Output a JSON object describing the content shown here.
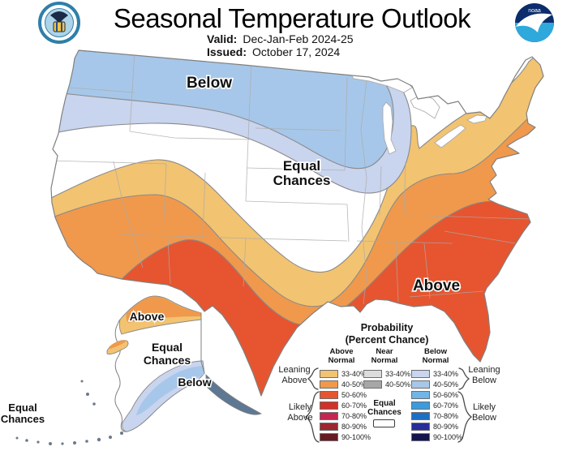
{
  "header": {
    "title": "Seasonal Temperature Outlook",
    "valid_label": "Valid:",
    "valid_value": "Dec-Jan-Feb 2024-25",
    "issued_label": "Issued:",
    "issued_value": "October 17, 2024",
    "noaa_text": "noaa"
  },
  "map": {
    "labels": {
      "below": "Below",
      "equal1": "Equal",
      "equal2": "Chances",
      "above": "Above",
      "ak_above": "Above",
      "ak_equal1": "Equal",
      "ak_equal2": "Chances",
      "ak_below": "Below",
      "aleutian_equal1": "Equal",
      "aleutian_equal2": "Chances"
    },
    "colors": {
      "land": "#FFFFFF",
      "outline": "#808080",
      "state_line": "#ABABAB",
      "band_stroke": "#8A8A8A",
      "above_33_40": "#F2C371",
      "above_40_50": "#F0994C",
      "above_50_60": "#E6552F",
      "below_33_40": "#C9D4EE",
      "below_40_50": "#A6C7E9",
      "ak_panhandle": "#5E7894",
      "island_dot": "#6B7A8C"
    }
  },
  "legend": {
    "title1": "Probability",
    "title2": "(Percent Chance)",
    "columns": [
      {
        "id": "above",
        "header1": "Above",
        "header2": "Normal",
        "rows": [
          {
            "range": "33-40%",
            "color": "#F2C371"
          },
          {
            "range": "40-50%",
            "color": "#F0994C"
          },
          {
            "range": "50-60%",
            "color": "#E6552F"
          },
          {
            "range": "60-70%",
            "color": "#D23128"
          },
          {
            "range": "70-80%",
            "color": "#C32651"
          },
          {
            "range": "80-90%",
            "color": "#9B2731"
          },
          {
            "range": "90-100%",
            "color": "#671B22"
          }
        ]
      },
      {
        "id": "near",
        "header1": "Near",
        "header2": "Normal",
        "rows": [
          {
            "range": "33-40%",
            "color": "#DCDCDC"
          },
          {
            "range": "40-50%",
            "color": "#A7A7A7"
          }
        ],
        "equal1": "Equal",
        "equal2": "Chances"
      },
      {
        "id": "below",
        "header1": "Below",
        "header2": "Normal",
        "rows": [
          {
            "range": "33-40%",
            "color": "#C9D4EE"
          },
          {
            "range": "40-50%",
            "color": "#A6C7E9"
          },
          {
            "range": "50-60%",
            "color": "#6FB5E7"
          },
          {
            "range": "60-70%",
            "color": "#3D9BDC"
          },
          {
            "range": "70-80%",
            "color": "#1C70C4"
          },
          {
            "range": "80-90%",
            "color": "#292C9C"
          },
          {
            "range": "90-100%",
            "color": "#14154E"
          }
        ]
      }
    ],
    "side_labels": {
      "leaning_above1": "Leaning",
      "leaning_above2": "Above",
      "likely_above1": "Likely",
      "likely_above2": "Above",
      "leaning_below1": "Leaning",
      "leaning_below2": "Below",
      "likely_below1": "Likely",
      "likely_below2": "Below"
    }
  }
}
